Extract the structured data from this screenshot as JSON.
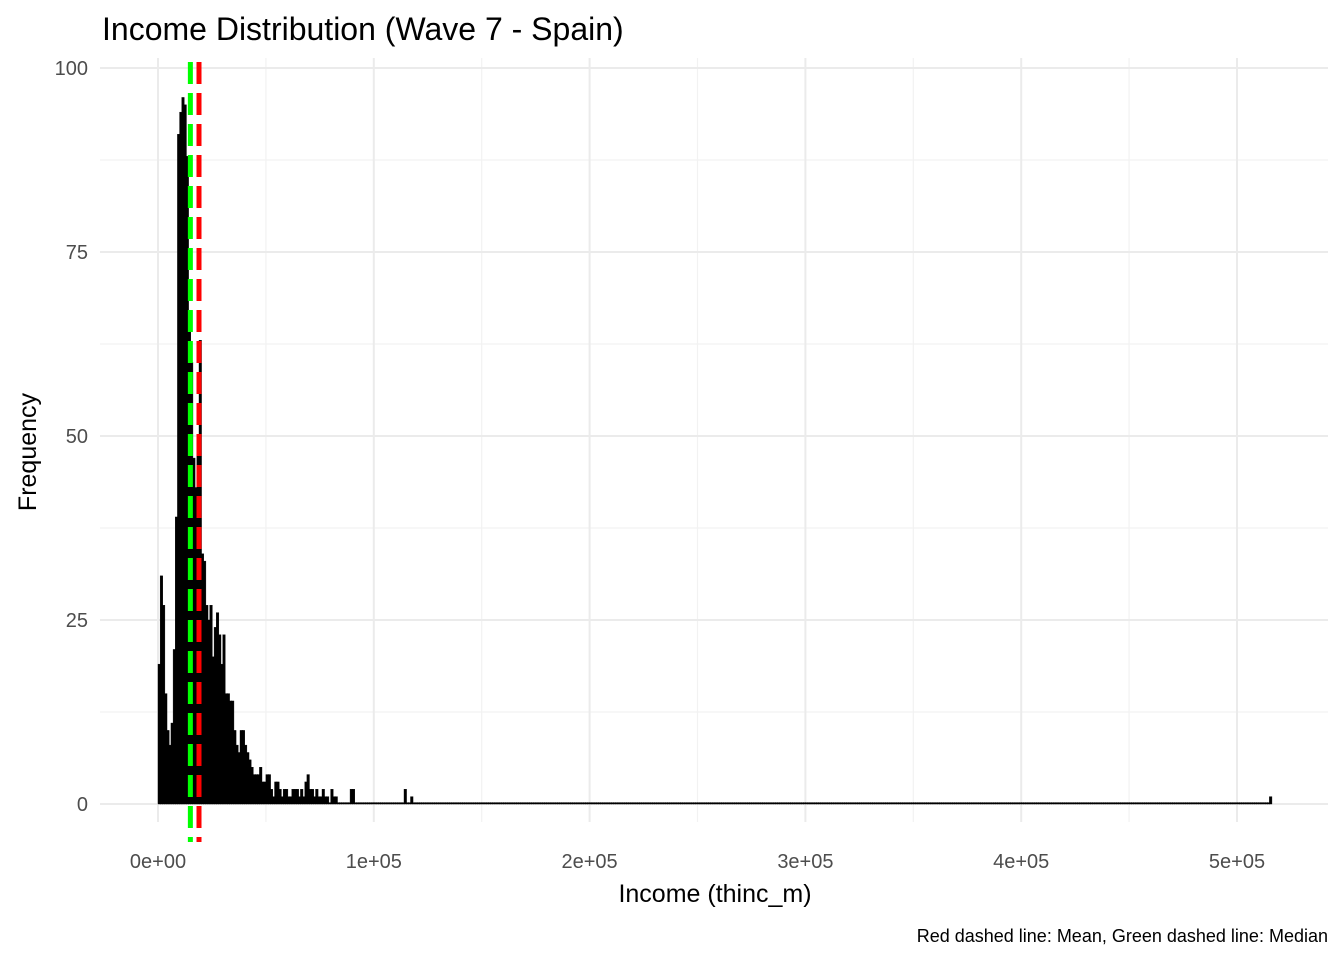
{
  "chart_data": {
    "type": "bar",
    "title": "Income Distribution (Wave 7 - Spain)",
    "xlabel": "Income (thinc_m)",
    "ylabel": "Frequency",
    "caption": "Red dashed line: Mean, Green dashed line: Median",
    "xlim": [
      0,
      520000
    ],
    "ylim": [
      0,
      100
    ],
    "x_ticks": [
      0,
      100000,
      200000,
      300000,
      400000,
      500000
    ],
    "x_tick_labels": [
      "0e+00",
      "1e+05",
      "2e+05",
      "3e+05",
      "4e+05",
      "5e+05"
    ],
    "y_ticks": [
      0,
      25,
      50,
      75,
      100
    ],
    "y_tick_labels": [
      "0",
      "25",
      "50",
      "75",
      "100"
    ],
    "bin_width": 1000,
    "bins": [
      {
        "x": 0,
        "count": 19
      },
      {
        "x": 1000,
        "count": 31
      },
      {
        "x": 2000,
        "count": 27
      },
      {
        "x": 3000,
        "count": 15
      },
      {
        "x": 4000,
        "count": 10
      },
      {
        "x": 5000,
        "count": 8
      },
      {
        "x": 6000,
        "count": 11
      },
      {
        "x": 7000,
        "count": 21
      },
      {
        "x": 8000,
        "count": 39
      },
      {
        "x": 9000,
        "count": 91
      },
      {
        "x": 10000,
        "count": 94
      },
      {
        "x": 11000,
        "count": 96
      },
      {
        "x": 12000,
        "count": 95
      },
      {
        "x": 13000,
        "count": 88
      },
      {
        "x": 14000,
        "count": 67
      },
      {
        "x": 15000,
        "count": 60
      },
      {
        "x": 16000,
        "count": 47
      },
      {
        "x": 17000,
        "count": 43
      },
      {
        "x": 18000,
        "count": 48
      },
      {
        "x": 19000,
        "count": 63
      },
      {
        "x": 20000,
        "count": 34
      },
      {
        "x": 21000,
        "count": 33
      },
      {
        "x": 22000,
        "count": 27
      },
      {
        "x": 23000,
        "count": 25
      },
      {
        "x": 24000,
        "count": 27
      },
      {
        "x": 25000,
        "count": 20
      },
      {
        "x": 26000,
        "count": 24
      },
      {
        "x": 27000,
        "count": 26
      },
      {
        "x": 28000,
        "count": 23
      },
      {
        "x": 29000,
        "count": 19
      },
      {
        "x": 30000,
        "count": 23
      },
      {
        "x": 31000,
        "count": 15
      },
      {
        "x": 32000,
        "count": 15
      },
      {
        "x": 33000,
        "count": 14
      },
      {
        "x": 34000,
        "count": 14
      },
      {
        "x": 35000,
        "count": 10
      },
      {
        "x": 36000,
        "count": 8
      },
      {
        "x": 37000,
        "count": 7
      },
      {
        "x": 38000,
        "count": 10
      },
      {
        "x": 39000,
        "count": 10
      },
      {
        "x": 40000,
        "count": 8
      },
      {
        "x": 41000,
        "count": 7
      },
      {
        "x": 42000,
        "count": 6
      },
      {
        "x": 43000,
        "count": 5
      },
      {
        "x": 44000,
        "count": 4
      },
      {
        "x": 45000,
        "count": 4
      },
      {
        "x": 46000,
        "count": 4
      },
      {
        "x": 47000,
        "count": 5
      },
      {
        "x": 48000,
        "count": 3
      },
      {
        "x": 49000,
        "count": 3
      },
      {
        "x": 50000,
        "count": 4
      },
      {
        "x": 51000,
        "count": 4
      },
      {
        "x": 52000,
        "count": 2
      },
      {
        "x": 53000,
        "count": 1
      },
      {
        "x": 54000,
        "count": 3
      },
      {
        "x": 55000,
        "count": 3
      },
      {
        "x": 56000,
        "count": 2
      },
      {
        "x": 57000,
        "count": 1
      },
      {
        "x": 58000,
        "count": 2
      },
      {
        "x": 59000,
        "count": 2
      },
      {
        "x": 60000,
        "count": 1
      },
      {
        "x": 61000,
        "count": 1
      },
      {
        "x": 62000,
        "count": 2
      },
      {
        "x": 63000,
        "count": 2
      },
      {
        "x": 64000,
        "count": 2
      },
      {
        "x": 65000,
        "count": 1
      },
      {
        "x": 66000,
        "count": 2
      },
      {
        "x": 67000,
        "count": 1
      },
      {
        "x": 68000,
        "count": 3
      },
      {
        "x": 69000,
        "count": 4
      },
      {
        "x": 70000,
        "count": 2
      },
      {
        "x": 71000,
        "count": 2
      },
      {
        "x": 72000,
        "count": 1
      },
      {
        "x": 73000,
        "count": 2
      },
      {
        "x": 74000,
        "count": 1
      },
      {
        "x": 75000,
        "count": 1
      },
      {
        "x": 76000,
        "count": 2
      },
      {
        "x": 77000,
        "count": 1
      },
      {
        "x": 78000,
        "count": 1
      },
      {
        "x": 80000,
        "count": 2
      },
      {
        "x": 81000,
        "count": 1
      },
      {
        "x": 82000,
        "count": 1
      },
      {
        "x": 89000,
        "count": 2
      },
      {
        "x": 90000,
        "count": 2
      },
      {
        "x": 114000,
        "count": 2
      },
      {
        "x": 117000,
        "count": 1
      },
      {
        "x": 515000,
        "count": 1
      }
    ],
    "reference_lines": [
      {
        "name": "Median",
        "x": 15000,
        "color": "#00ff00",
        "style": "dashed"
      },
      {
        "name": "Mean",
        "x": 19000,
        "color": "#ff0000",
        "style": "dashed"
      }
    ],
    "grid": true,
    "legend": "none"
  }
}
